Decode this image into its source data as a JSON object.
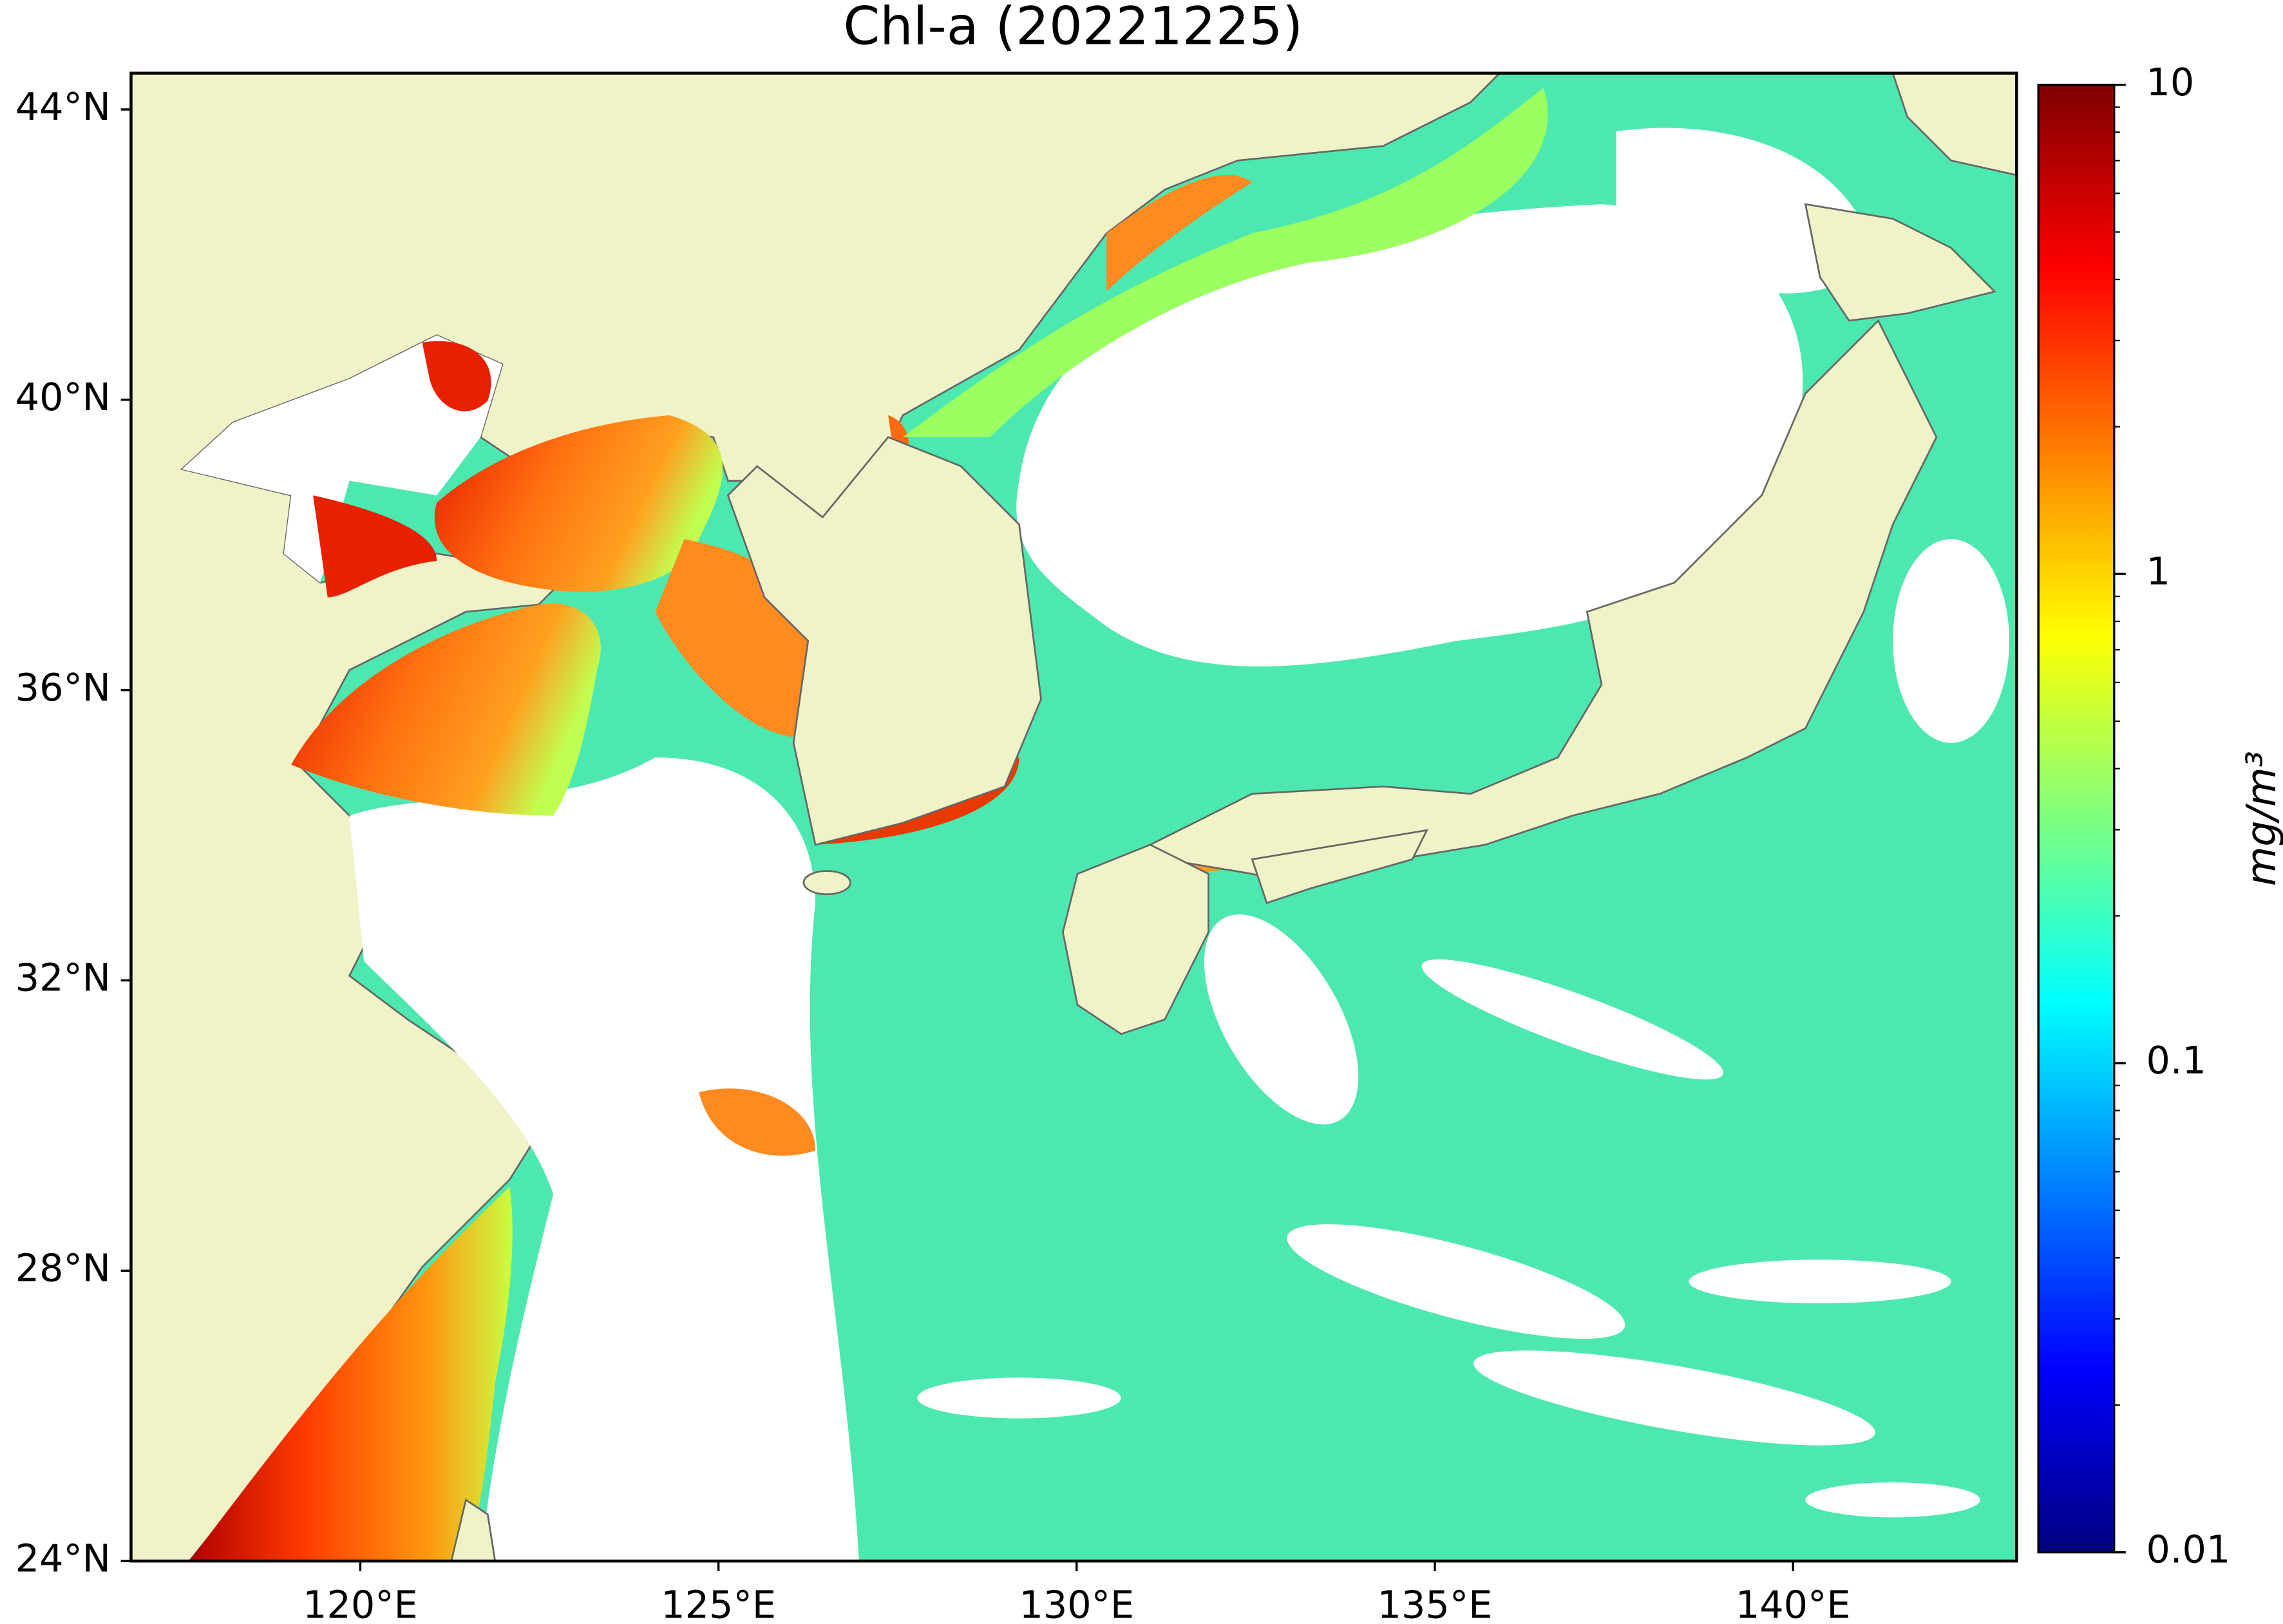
{
  "chart_data": {
    "type": "map",
    "title": "Chl-a (20221225)",
    "xlim": [
      116.8,
      143.12
    ],
    "ylim": [
      24,
      44.5
    ],
    "xticks": [
      {
        "value": 120,
        "label": "120°E"
      },
      {
        "value": 125,
        "label": "125°E"
      },
      {
        "value": 130,
        "label": "130°E"
      },
      {
        "value": 135,
        "label": "135°E"
      },
      {
        "value": 140,
        "label": "140°E"
      }
    ],
    "yticks": [
      {
        "value": 24,
        "label": "24°N"
      },
      {
        "value": 28,
        "label": "28°N"
      },
      {
        "value": 32,
        "label": "32°N"
      },
      {
        "value": 36,
        "label": "36°N"
      },
      {
        "value": 40,
        "label": "40°N"
      },
      {
        "value": 44,
        "label": "44°N"
      }
    ],
    "colorbar": {
      "label": "mg/m³",
      "scale": "log",
      "lim": [
        0.01,
        10
      ],
      "ticks": [
        0.01,
        0.1,
        1,
        10
      ],
      "minor_ticks": [
        0.02,
        0.03,
        0.04,
        0.05,
        0.06,
        0.07,
        0.08,
        0.09,
        0.2,
        0.3,
        0.4,
        0.5,
        0.6,
        0.7,
        0.8,
        0.9,
        2,
        3,
        4,
        5,
        6,
        7,
        8,
        9
      ],
      "colors": [
        "#00007f",
        "#0000ff",
        "#007fff",
        "#00ffff",
        "#7fff7f",
        "#ffff00",
        "#ff7f00",
        "#ff0000",
        "#7f0000"
      ]
    }
  }
}
